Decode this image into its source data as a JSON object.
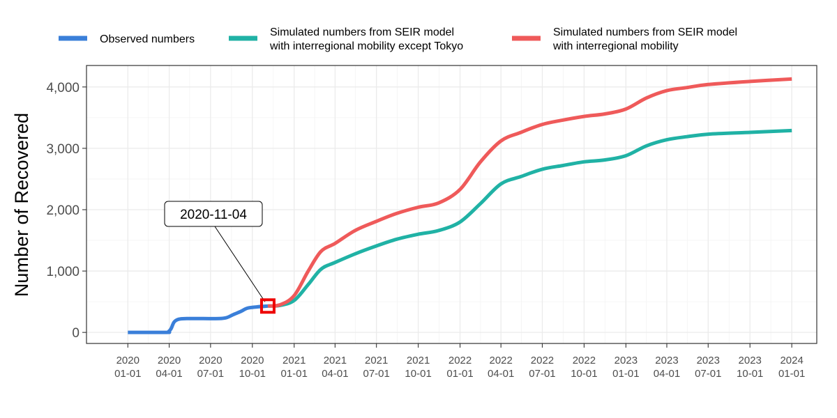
{
  "chart_data": {
    "type": "line",
    "title": "",
    "xlabel": "",
    "ylabel": "Number of Recovered",
    "ylim": [
      -180,
      4350
    ],
    "y_ticks": [
      0,
      1000,
      2000,
      3000,
      4000
    ],
    "y_tick_labels": [
      "0",
      "1,000",
      "2,000",
      "3,000",
      "4,000"
    ],
    "x_range": [
      "2019-10-02",
      "2024-02-25"
    ],
    "x_ticks": [
      "2020-01-01",
      "2020-04-01",
      "2020-07-01",
      "2020-10-01",
      "2021-01-01",
      "2021-04-01",
      "2021-07-01",
      "2021-10-01",
      "2022-01-01",
      "2022-04-01",
      "2022-07-01",
      "2022-10-01",
      "2023-01-01",
      "2023-04-01",
      "2023-07-01",
      "2023-10-01",
      "2024-01-01"
    ],
    "x_tick_labels": [
      [
        "2020",
        "01-01"
      ],
      [
        "2020",
        "04-01"
      ],
      [
        "2020",
        "07-01"
      ],
      [
        "2020",
        "10-01"
      ],
      [
        "2021",
        "01-01"
      ],
      [
        "2021",
        "04-01"
      ],
      [
        "2021",
        "07-01"
      ],
      [
        "2021",
        "10-01"
      ],
      [
        "2022",
        "01-01"
      ],
      [
        "2022",
        "04-01"
      ],
      [
        "2022",
        "07-01"
      ],
      [
        "2022",
        "10-01"
      ],
      [
        "2023",
        "01-01"
      ],
      [
        "2023",
        "04-01"
      ],
      [
        "2023",
        "07-01"
      ],
      [
        "2023",
        "10-01"
      ],
      [
        "2024",
        "01-01"
      ]
    ],
    "grid": true,
    "legend_position": "top",
    "series": [
      {
        "name": "Observed numbers",
        "color": "#3a7fd9",
        "points": [
          [
            "2020-01-01",
            0
          ],
          [
            "2020-03-25",
            0
          ],
          [
            "2020-03-30",
            10
          ],
          [
            "2020-04-05",
            60
          ],
          [
            "2020-04-12",
            170
          ],
          [
            "2020-04-22",
            215
          ],
          [
            "2020-05-10",
            225
          ],
          [
            "2020-06-15",
            225
          ],
          [
            "2020-07-20",
            225
          ],
          [
            "2020-08-05",
            240
          ],
          [
            "2020-08-20",
            290
          ],
          [
            "2020-09-05",
            340
          ],
          [
            "2020-09-20",
            395
          ],
          [
            "2020-10-10",
            415
          ],
          [
            "2020-11-04",
            430
          ]
        ]
      },
      {
        "name": "Simulated numbers from SEIR model\nwith interregional mobility except Tokyo",
        "color": "#20b2a5",
        "points": [
          [
            "2020-11-04",
            430
          ],
          [
            "2020-12-01",
            440
          ],
          [
            "2021-01-01",
            520
          ],
          [
            "2021-02-01",
            780
          ],
          [
            "2021-03-01",
            1030
          ],
          [
            "2021-04-01",
            1140
          ],
          [
            "2021-05-15",
            1280
          ],
          [
            "2021-07-01",
            1410
          ],
          [
            "2021-08-15",
            1520
          ],
          [
            "2021-10-01",
            1600
          ],
          [
            "2021-11-15",
            1660
          ],
          [
            "2022-01-01",
            1800
          ],
          [
            "2022-02-15",
            2100
          ],
          [
            "2022-04-01",
            2420
          ],
          [
            "2022-05-15",
            2540
          ],
          [
            "2022-07-01",
            2660
          ],
          [
            "2022-08-15",
            2720
          ],
          [
            "2022-10-01",
            2780
          ],
          [
            "2022-11-15",
            2810
          ],
          [
            "2023-01-01",
            2880
          ],
          [
            "2023-02-15",
            3040
          ],
          [
            "2023-04-01",
            3140
          ],
          [
            "2023-05-15",
            3190
          ],
          [
            "2023-07-01",
            3230
          ],
          [
            "2023-10-01",
            3260
          ],
          [
            "2024-01-01",
            3290
          ]
        ]
      },
      {
        "name": "Simulated numbers from SEIR model\nwith interregional mobility",
        "color": "#ef5a5a",
        "points": [
          [
            "2020-11-04",
            430
          ],
          [
            "2020-12-01",
            450
          ],
          [
            "2021-01-01",
            600
          ],
          [
            "2021-02-01",
            1000
          ],
          [
            "2021-03-01",
            1320
          ],
          [
            "2021-04-01",
            1450
          ],
          [
            "2021-05-15",
            1660
          ],
          [
            "2021-07-01",
            1810
          ],
          [
            "2021-08-15",
            1940
          ],
          [
            "2021-10-01",
            2040
          ],
          [
            "2021-11-15",
            2110
          ],
          [
            "2022-01-01",
            2330
          ],
          [
            "2022-02-15",
            2780
          ],
          [
            "2022-04-01",
            3120
          ],
          [
            "2022-05-15",
            3260
          ],
          [
            "2022-07-01",
            3390
          ],
          [
            "2022-08-15",
            3460
          ],
          [
            "2022-10-01",
            3520
          ],
          [
            "2022-11-15",
            3560
          ],
          [
            "2023-01-01",
            3640
          ],
          [
            "2023-02-15",
            3820
          ],
          [
            "2023-04-01",
            3940
          ],
          [
            "2023-05-15",
            3990
          ],
          [
            "2023-07-01",
            4040
          ],
          [
            "2023-10-01",
            4090
          ],
          [
            "2024-01-01",
            4130
          ]
        ]
      }
    ],
    "annotation": {
      "label": "2020-11-04",
      "x": "2020-11-04",
      "y": 430,
      "marker_color": "#ee0000"
    }
  }
}
